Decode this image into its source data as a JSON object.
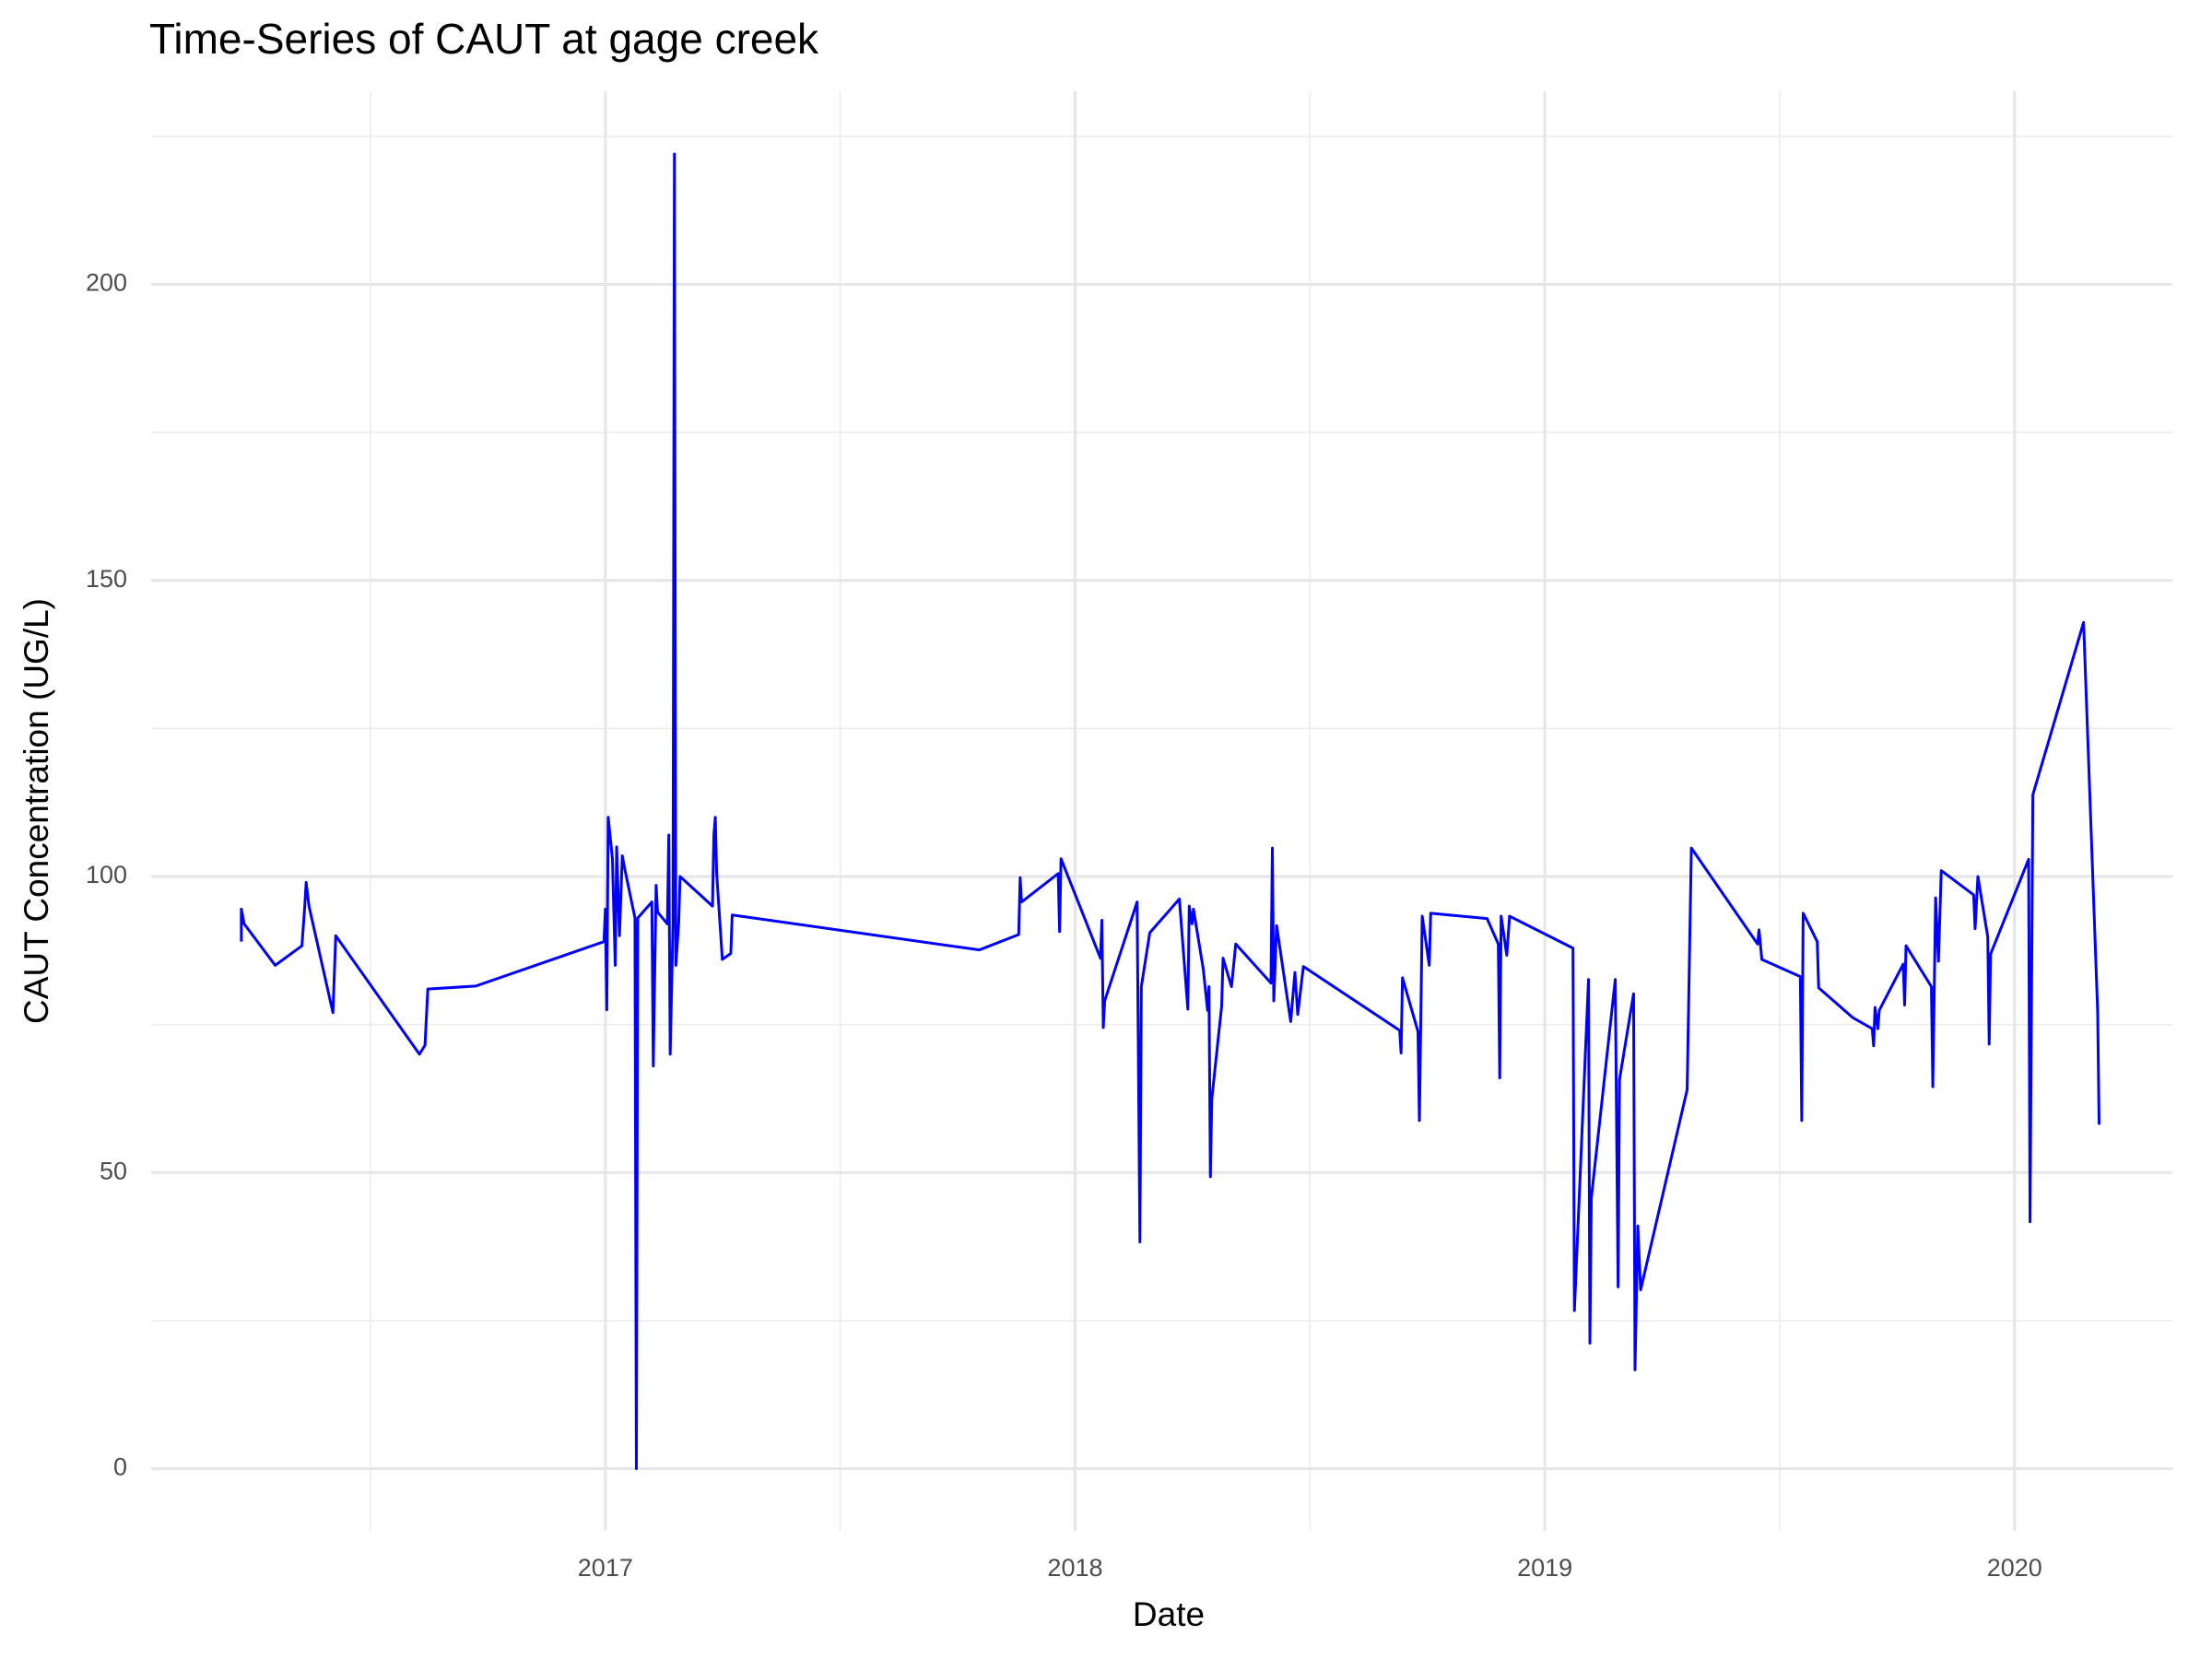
{
  "chart_data": {
    "type": "line",
    "title": "Time-Series of CAUT at gage creek",
    "x_label": "Date",
    "y_label": "CAUT Concentration (UG/L)",
    "color": "#0000ff",
    "grid": true,
    "minor_grid": true,
    "xlim": [
      2016.033,
      2020.336
    ],
    "ylim": [
      -10.5,
      232.6
    ],
    "xticks": [
      2017,
      2018,
      2019,
      2020
    ],
    "yticks": [
      0,
      50,
      100,
      150,
      200
    ],
    "x": [
      2016.225,
      2016.225,
      2016.231,
      2016.297,
      2016.354,
      2016.36,
      2016.363,
      2016.369,
      2016.42,
      2016.426,
      2016.604,
      2016.616,
      2016.622,
      2016.724,
      2016.997,
      2017.0,
      2017.003,
      2017.006,
      2017.015,
      2017.021,
      2017.024,
      2017.03,
      2017.036,
      2017.042,
      2017.063,
      2017.066,
      2017.069,
      2017.099,
      2017.102,
      2017.108,
      2017.111,
      2017.132,
      2017.135,
      2017.138,
      2017.144,
      2017.147,
      2017.15,
      2017.156,
      2017.159,
      2017.228,
      2017.231,
      2017.234,
      2017.237,
      2017.249,
      2017.267,
      2017.27,
      2017.796,
      2017.88,
      2017.883,
      2017.886,
      2017.964,
      2017.967,
      2017.97,
      2018.054,
      2018.057,
      2018.06,
      2018.063,
      2018.132,
      2018.138,
      2018.141,
      2018.159,
      2018.222,
      2018.237,
      2018.24,
      2018.243,
      2018.249,
      2018.252,
      2018.273,
      2018.282,
      2018.285,
      2018.288,
      2018.291,
      2018.312,
      2018.315,
      2018.333,
      2018.342,
      2018.417,
      2018.42,
      2018.423,
      2018.429,
      2018.459,
      2018.468,
      2018.474,
      2018.486,
      2018.691,
      2018.694,
      2018.697,
      2018.73,
      2018.733,
      2018.739,
      2018.754,
      2018.757,
      2018.877,
      2018.901,
      2018.904,
      2018.907,
      2018.919,
      2018.925,
      2019.06,
      2019.063,
      2019.093,
      2019.096,
      2019.099,
      2019.15,
      2019.156,
      2019.159,
      2019.189,
      2019.192,
      2019.198,
      2019.204,
      2019.303,
      2019.312,
      2019.453,
      2019.456,
      2019.462,
      2019.544,
      2019.547,
      2019.55,
      2019.58,
      2019.583,
      2019.655,
      2019.697,
      2019.7,
      2019.703,
      2019.709,
      2019.712,
      2019.763,
      2019.766,
      2019.769,
      2019.823,
      2019.826,
      2019.832,
      2019.838,
      2019.844,
      2019.913,
      2019.916,
      2019.922,
      2019.943,
      2019.946,
      2019.949,
      2020.03,
      2020.033,
      2020.039,
      2020.147,
      2020.177,
      2020.18
    ],
    "values": [
      89,
      94.5,
      92,
      85,
      88.3,
      95,
      99,
      95,
      77,
      90,
      70,
      71.5,
      81,
      81.5,
      89,
      94.5,
      77.5,
      110,
      103,
      85,
      105,
      90,
      103.5,
      101,
      93,
      0,
      93,
      95.7,
      68,
      98.5,
      94,
      92,
      107,
      70,
      92,
      222,
      85,
      92,
      100,
      95,
      107,
      110,
      100.5,
      86,
      87,
      93.5,
      87.6,
      90.2,
      99.8,
      95.7,
      100.5,
      90.7,
      103,
      86.2,
      92.6,
      74.5,
      79,
      95.7,
      38.3,
      81.4,
      90.5,
      96.2,
      80.7,
      77.6,
      95,
      92,
      94.5,
      84.3,
      77.4,
      81.4,
      49.3,
      62.4,
      78.1,
      86.2,
      81.4,
      88.6,
      82,
      104.8,
      79,
      91.7,
      75.5,
      83.8,
      76.7,
      84.8,
      74,
      70.2,
      82.9,
      73.8,
      58.8,
      93.3,
      85,
      93.8,
      92.9,
      88.6,
      66,
      93.3,
      86.7,
      93.3,
      87.9,
      26.7,
      82.6,
      21.2,
      45.7,
      82.6,
      30.7,
      65.7,
      80.2,
      16.7,
      41,
      30.2,
      64,
      104.8,
      88.6,
      91,
      86,
      83.1,
      58.8,
      93.8,
      89,
      81.2,
      76.2,
      74.3,
      71.4,
      77.9,
      74.3,
      77.4,
      85.2,
      78.3,
      88.3,
      81.4,
      64.5,
      96.4,
      85.7,
      101,
      96.9,
      91.2,
      100,
      89.8,
      71.7,
      86.9,
      102.9,
      41.7,
      113.8,
      142.9,
      77.1,
      58.1
    ]
  }
}
